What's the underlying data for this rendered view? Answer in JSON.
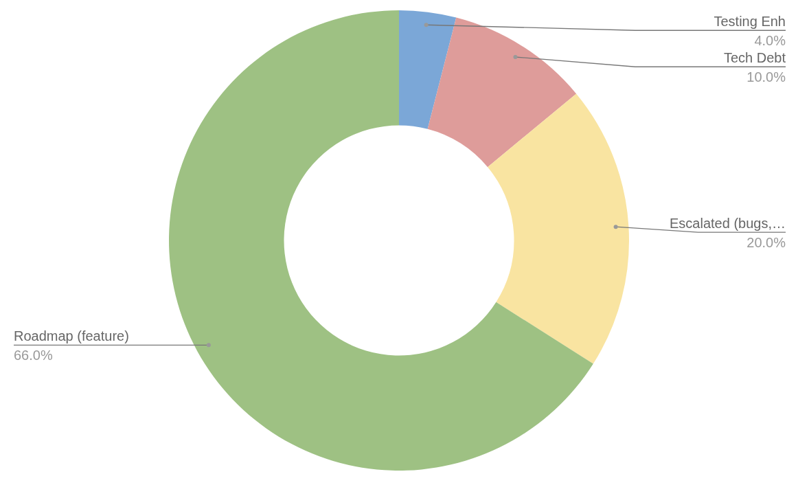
{
  "chart_data": {
    "type": "donut",
    "categories": [
      "Testing Enh",
      "Tech Debt",
      "Escalated (bugs,…",
      "Roadmap (feature)"
    ],
    "values": [
      4.0,
      10.0,
      20.0,
      66.0
    ],
    "value_labels": [
      "4.0%",
      "10.0%",
      "20.0%",
      "66.0%"
    ],
    "colors": [
      "#7ba7d7",
      "#de9c9a",
      "#f9e4a1",
      "#9ec183"
    ],
    "legend": false
  }
}
